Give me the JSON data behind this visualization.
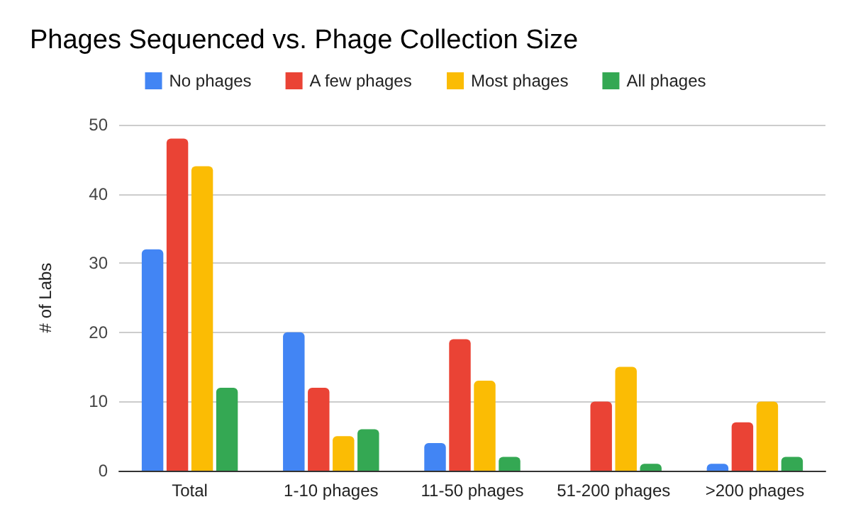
{
  "chart_data": {
    "type": "bar",
    "title": "Phages Sequenced vs. Phage Collection Size",
    "ylabel": "# of Labs",
    "categories": [
      "Total",
      "1-10 phages",
      "11-50 phages",
      "51-200 phages",
      ">200 phages"
    ],
    "series": [
      {
        "name": "No phages",
        "color": "#4285f4",
        "values": [
          32,
          20,
          4,
          0,
          1
        ]
      },
      {
        "name": "A few phages",
        "color": "#ea4335",
        "values": [
          48,
          12,
          19,
          10,
          7
        ]
      },
      {
        "name": "Most phages",
        "color": "#fbbc04",
        "values": [
          44,
          5,
          13,
          15,
          10
        ]
      },
      {
        "name": "All phages",
        "color": "#34a853",
        "values": [
          12,
          6,
          2,
          1,
          2
        ]
      }
    ],
    "ylim": [
      0,
      50
    ],
    "yticks": [
      0,
      10,
      20,
      30,
      40,
      50
    ],
    "grid": "y",
    "legend": "top"
  }
}
